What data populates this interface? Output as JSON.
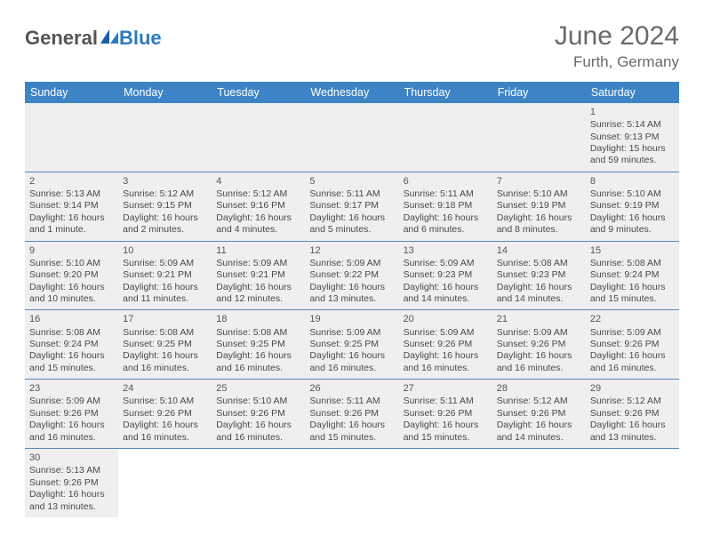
{
  "logo": {
    "part1": "General",
    "part2": "Blue"
  },
  "title": "June 2024",
  "location": "Furth, Germany",
  "colors": {
    "header_bg": "#3d84c6",
    "header_fg": "#ffffff",
    "cell_bg": "#efefef",
    "divider": "#5a88b8",
    "logo_blue": "#2e7bc0",
    "text": "#444444"
  },
  "weekdays": [
    "Sunday",
    "Monday",
    "Tuesday",
    "Wednesday",
    "Thursday",
    "Friday",
    "Saturday"
  ],
  "weeks": [
    [
      null,
      null,
      null,
      null,
      null,
      null,
      {
        "n": "1",
        "sr": "Sunrise: 5:14 AM",
        "ss": "Sunset: 9:13 PM",
        "dl": "Daylight: 15 hours and 59 minutes."
      }
    ],
    [
      {
        "n": "2",
        "sr": "Sunrise: 5:13 AM",
        "ss": "Sunset: 9:14 PM",
        "dl": "Daylight: 16 hours and 1 minute."
      },
      {
        "n": "3",
        "sr": "Sunrise: 5:12 AM",
        "ss": "Sunset: 9:15 PM",
        "dl": "Daylight: 16 hours and 2 minutes."
      },
      {
        "n": "4",
        "sr": "Sunrise: 5:12 AM",
        "ss": "Sunset: 9:16 PM",
        "dl": "Daylight: 16 hours and 4 minutes."
      },
      {
        "n": "5",
        "sr": "Sunrise: 5:11 AM",
        "ss": "Sunset: 9:17 PM",
        "dl": "Daylight: 16 hours and 5 minutes."
      },
      {
        "n": "6",
        "sr": "Sunrise: 5:11 AM",
        "ss": "Sunset: 9:18 PM",
        "dl": "Daylight: 16 hours and 6 minutes."
      },
      {
        "n": "7",
        "sr": "Sunrise: 5:10 AM",
        "ss": "Sunset: 9:19 PM",
        "dl": "Daylight: 16 hours and 8 minutes."
      },
      {
        "n": "8",
        "sr": "Sunrise: 5:10 AM",
        "ss": "Sunset: 9:19 PM",
        "dl": "Daylight: 16 hours and 9 minutes."
      }
    ],
    [
      {
        "n": "9",
        "sr": "Sunrise: 5:10 AM",
        "ss": "Sunset: 9:20 PM",
        "dl": "Daylight: 16 hours and 10 minutes."
      },
      {
        "n": "10",
        "sr": "Sunrise: 5:09 AM",
        "ss": "Sunset: 9:21 PM",
        "dl": "Daylight: 16 hours and 11 minutes."
      },
      {
        "n": "11",
        "sr": "Sunrise: 5:09 AM",
        "ss": "Sunset: 9:21 PM",
        "dl": "Daylight: 16 hours and 12 minutes."
      },
      {
        "n": "12",
        "sr": "Sunrise: 5:09 AM",
        "ss": "Sunset: 9:22 PM",
        "dl": "Daylight: 16 hours and 13 minutes."
      },
      {
        "n": "13",
        "sr": "Sunrise: 5:09 AM",
        "ss": "Sunset: 9:23 PM",
        "dl": "Daylight: 16 hours and 14 minutes."
      },
      {
        "n": "14",
        "sr": "Sunrise: 5:08 AM",
        "ss": "Sunset: 9:23 PM",
        "dl": "Daylight: 16 hours and 14 minutes."
      },
      {
        "n": "15",
        "sr": "Sunrise: 5:08 AM",
        "ss": "Sunset: 9:24 PM",
        "dl": "Daylight: 16 hours and 15 minutes."
      }
    ],
    [
      {
        "n": "16",
        "sr": "Sunrise: 5:08 AM",
        "ss": "Sunset: 9:24 PM",
        "dl": "Daylight: 16 hours and 15 minutes."
      },
      {
        "n": "17",
        "sr": "Sunrise: 5:08 AM",
        "ss": "Sunset: 9:25 PM",
        "dl": "Daylight: 16 hours and 16 minutes."
      },
      {
        "n": "18",
        "sr": "Sunrise: 5:08 AM",
        "ss": "Sunset: 9:25 PM",
        "dl": "Daylight: 16 hours and 16 minutes."
      },
      {
        "n": "19",
        "sr": "Sunrise: 5:09 AM",
        "ss": "Sunset: 9:25 PM",
        "dl": "Daylight: 16 hours and 16 minutes."
      },
      {
        "n": "20",
        "sr": "Sunrise: 5:09 AM",
        "ss": "Sunset: 9:26 PM",
        "dl": "Daylight: 16 hours and 16 minutes."
      },
      {
        "n": "21",
        "sr": "Sunrise: 5:09 AM",
        "ss": "Sunset: 9:26 PM",
        "dl": "Daylight: 16 hours and 16 minutes."
      },
      {
        "n": "22",
        "sr": "Sunrise: 5:09 AM",
        "ss": "Sunset: 9:26 PM",
        "dl": "Daylight: 16 hours and 16 minutes."
      }
    ],
    [
      {
        "n": "23",
        "sr": "Sunrise: 5:09 AM",
        "ss": "Sunset: 9:26 PM",
        "dl": "Daylight: 16 hours and 16 minutes."
      },
      {
        "n": "24",
        "sr": "Sunrise: 5:10 AM",
        "ss": "Sunset: 9:26 PM",
        "dl": "Daylight: 16 hours and 16 minutes."
      },
      {
        "n": "25",
        "sr": "Sunrise: 5:10 AM",
        "ss": "Sunset: 9:26 PM",
        "dl": "Daylight: 16 hours and 16 minutes."
      },
      {
        "n": "26",
        "sr": "Sunrise: 5:11 AM",
        "ss": "Sunset: 9:26 PM",
        "dl": "Daylight: 16 hours and 15 minutes."
      },
      {
        "n": "27",
        "sr": "Sunrise: 5:11 AM",
        "ss": "Sunset: 9:26 PM",
        "dl": "Daylight: 16 hours and 15 minutes."
      },
      {
        "n": "28",
        "sr": "Sunrise: 5:12 AM",
        "ss": "Sunset: 9:26 PM",
        "dl": "Daylight: 16 hours and 14 minutes."
      },
      {
        "n": "29",
        "sr": "Sunrise: 5:12 AM",
        "ss": "Sunset: 9:26 PM",
        "dl": "Daylight: 16 hours and 13 minutes."
      }
    ],
    [
      {
        "n": "30",
        "sr": "Sunrise: 5:13 AM",
        "ss": "Sunset: 9:26 PM",
        "dl": "Daylight: 16 hours and 13 minutes."
      },
      null,
      null,
      null,
      null,
      null,
      null
    ]
  ]
}
